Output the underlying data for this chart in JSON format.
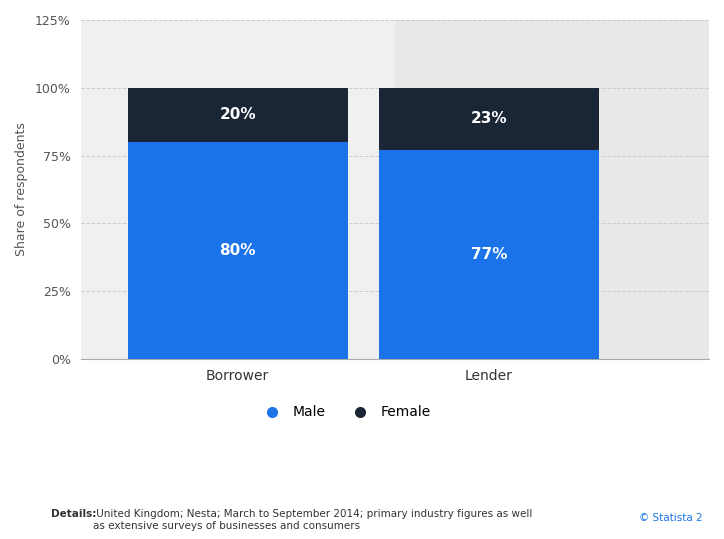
{
  "categories": [
    "Borrower",
    "Lender"
  ],
  "male_values": [
    80,
    77
  ],
  "female_values": [
    20,
    23
  ],
  "male_color": "#1a73e8",
  "female_color": "#1a2535",
  "bar_width": 0.35,
  "ylim": [
    0,
    125
  ],
  "yticks": [
    0,
    25,
    50,
    75,
    100,
    125
  ],
  "ytick_labels": [
    "0%",
    "25%",
    "50%",
    "75%",
    "100%",
    "125%"
  ],
  "ylabel": "Share of respondents",
  "male_label": "Male",
  "female_label": "Female",
  "bar_text_color": "#ffffff",
  "bar_text_fontsize": 11,
  "legend_fontsize": 10,
  "tick_fontsize": 9,
  "ylabel_fontsize": 9,
  "details_bold": "Details:",
  "details_rest": " United Kingdom; Nesta; March to September 2014; primary industry figures as well\nas extensive surveys of businesses and consumers",
  "statista_text": "© Statista 2",
  "background_color": "#ffffff",
  "plot_bg_color": "#f0f0f0",
  "right_panel_color": "#e8e8e8",
  "grid_color": "#cccccc",
  "bar_positions": [
    0.25,
    0.65
  ]
}
